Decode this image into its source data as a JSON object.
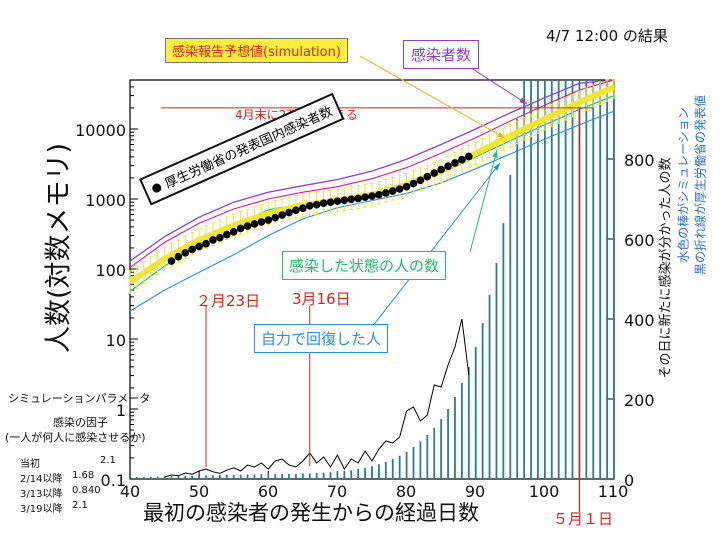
{
  "chart_data": {
    "type": "line",
    "header": "4/7 12:00 の結果",
    "xlabel": "最初の感染者の発生からの経過日数",
    "ylabel_left": "人数(対数メモリ)",
    "ylabel_right": "その日に新たに感染が分かった人の数",
    "right_legend_1": "水色の棒がシミュレーション",
    "right_legend_2": "黒の折れ線が厚生労働省の発表値",
    "xlim": [
      40,
      110
    ],
    "x_ticks": [
      "40",
      "50",
      "60",
      "70",
      "80",
      "90",
      "100",
      "110"
    ],
    "y_left_log_range": [
      0.1,
      50000
    ],
    "y_left_ticks": [
      "0.1",
      "1",
      "10",
      "100",
      "1000",
      "10000"
    ],
    "y_right_range": [
      0,
      1000
    ],
    "y_right_ticks": [
      "0",
      "200",
      "400",
      "600",
      "800"
    ],
    "annotations": {
      "forecast_box": "感染報告予想値(simulation)",
      "infected_box": "感染者数",
      "threshold_text": "4月末に2万人を超える",
      "threshold_value": 20000,
      "official_box": "厚生労働省の発表国内感染者数",
      "infected_state_box": "感染した状態の人の数",
      "recovered_box": "自力で回復した人",
      "date_feb23": "２月23日",
      "date_feb23_day": 51,
      "date_mar16": "3月16日",
      "date_mar16_day": 66,
      "date_may1": "５月１日",
      "date_may1_day": 105
    },
    "params": {
      "title": "シミュレーションパラメータ",
      "subtitle1": "感染の因子",
      "subtitle2": "(一人が何人に感染させるか)",
      "rows": [
        {
          "label": "当初",
          "value": "2.1"
        },
        {
          "label": "2/14以降",
          "value": "1.68"
        },
        {
          "label": "3/13以降",
          "value": "0.840"
        },
        {
          "label": "3/19以降",
          "value": "2.1"
        }
      ]
    },
    "official_cumulative": {
      "x": [
        46,
        47,
        48,
        49,
        50,
        51,
        52,
        53,
        54,
        55,
        56,
        57,
        58,
        59,
        60,
        61,
        62,
        63,
        64,
        65,
        66,
        67,
        68,
        69,
        70,
        71,
        72,
        73,
        74,
        75,
        76,
        77,
        78,
        79,
        80,
        81,
        82,
        83,
        84,
        85,
        86,
        87,
        88,
        89
      ],
      "y": [
        130,
        150,
        170,
        190,
        210,
        230,
        260,
        280,
        310,
        340,
        380,
        410,
        440,
        470,
        500,
        540,
        590,
        640,
        690,
        740,
        800,
        830,
        870,
        900,
        930,
        960,
        990,
        1020,
        1060,
        1100,
        1150,
        1220,
        1300,
        1390,
        1500,
        1660,
        1850,
        2080,
        2350,
        2630,
        2940,
        3270,
        3640,
        4050
      ]
    },
    "daily_official": {
      "x": [
        45,
        46,
        47,
        48,
        49,
        50,
        51,
        52,
        53,
        54,
        55,
        56,
        57,
        58,
        59,
        60,
        61,
        62,
        63,
        64,
        65,
        66,
        67,
        68,
        69,
        70,
        71,
        72,
        73,
        74,
        75,
        76,
        77,
        78,
        79,
        80,
        81,
        82,
        83,
        84,
        85,
        86,
        87,
        88,
        89
      ],
      "y": [
        5,
        10,
        8,
        15,
        12,
        20,
        25,
        18,
        14,
        22,
        28,
        20,
        35,
        30,
        40,
        25,
        45,
        50,
        35,
        30,
        45,
        65,
        40,
        55,
        30,
        60,
        25,
        50,
        40,
        70,
        45,
        75,
        95,
        90,
        105,
        170,
        180,
        145,
        160,
        235,
        230,
        285,
        330,
        400,
        260
      ]
    },
    "daily_simulated": {
      "x": [
        41,
        42,
        43,
        44,
        45,
        46,
        47,
        48,
        49,
        50,
        51,
        52,
        53,
        54,
        55,
        56,
        57,
        58,
        59,
        60,
        61,
        62,
        63,
        64,
        65,
        66,
        67,
        68,
        69,
        70,
        71,
        72,
        73,
        74,
        75,
        76,
        77,
        78,
        79,
        80,
        81,
        82,
        83,
        84,
        85,
        86,
        87,
        88,
        89,
        90,
        91,
        92,
        93,
        94,
        95,
        96,
        97,
        98,
        99,
        100,
        101,
        102,
        103,
        104,
        105,
        106,
        107,
        108,
        109,
        110
      ],
      "y": [
        5,
        5,
        5,
        6,
        6,
        7,
        7,
        8,
        8,
        9,
        9,
        9,
        10,
        10,
        10,
        11,
        11,
        11,
        12,
        12,
        12,
        13,
        13,
        13,
        14,
        14,
        15,
        16,
        17,
        18,
        20,
        22,
        25,
        28,
        32,
        37,
        43,
        50,
        58,
        68,
        80,
        94,
        110,
        128,
        150,
        175,
        205,
        240,
        280,
        330,
        390,
        460,
        540,
        640,
        760,
        900,
        1000,
        1000,
        1000,
        1000,
        1000,
        1000,
        1000,
        1000,
        1000,
        1000,
        1000,
        1000,
        1000,
        1000
      ]
    },
    "forecast_band": {
      "x": [
        40,
        45,
        50,
        55,
        60,
        65,
        70,
        75,
        80,
        85,
        90,
        95,
        100,
        105,
        110
      ],
      "y": [
        65,
        140,
        260,
        420,
        620,
        820,
        950,
        1150,
        1600,
        2500,
        4500,
        8000,
        14000,
        24000,
        40000
      ]
    },
    "infected_purple": {
      "x": [
        40,
        45,
        50,
        55,
        60,
        65,
        70,
        75,
        80,
        85,
        90,
        95,
        100,
        105,
        110
      ],
      "y": [
        130,
        290,
        550,
        900,
        1250,
        1550,
        1900,
        2500,
        3700,
        6000,
        10000,
        17000,
        28000,
        45000,
        60000
      ]
    },
    "upper_pink": {
      "x": [
        40,
        45,
        50,
        55,
        60,
        65,
        70,
        75,
        80,
        85,
        90,
        95,
        100,
        105,
        110
      ],
      "y": [
        105,
        240,
        450,
        720,
        1000,
        1250,
        1500,
        1950,
        2800,
        4500,
        7500,
        13000,
        22000,
        36000,
        55000
      ]
    },
    "infected_state_green": {
      "x": [
        40,
        45,
        50,
        55,
        60,
        65,
        70,
        75,
        80,
        85,
        90,
        95,
        100,
        105,
        110
      ],
      "y": [
        48,
        110,
        230,
        420,
        700,
        850,
        900,
        1050,
        1500,
        2300,
        4000,
        6800,
        11500,
        19000,
        30000
      ]
    },
    "recovered_blue": {
      "x": [
        40,
        45,
        50,
        55,
        60,
        65,
        70,
        75,
        80,
        85,
        90,
        95,
        100,
        105,
        110
      ],
      "y": [
        25,
        50,
        90,
        160,
        300,
        520,
        750,
        950,
        1200,
        1700,
        2700,
        4400,
        7200,
        11500,
        18000
      ]
    },
    "colors": {
      "forecast": "#f2e633",
      "infected": "#8a3fd0",
      "pink": "#d81b93",
      "green": "#1fbf6c",
      "blue": "#2a8fd8",
      "bars": "#2b7d8a",
      "official": "#000000",
      "red": "#d62222"
    }
  }
}
